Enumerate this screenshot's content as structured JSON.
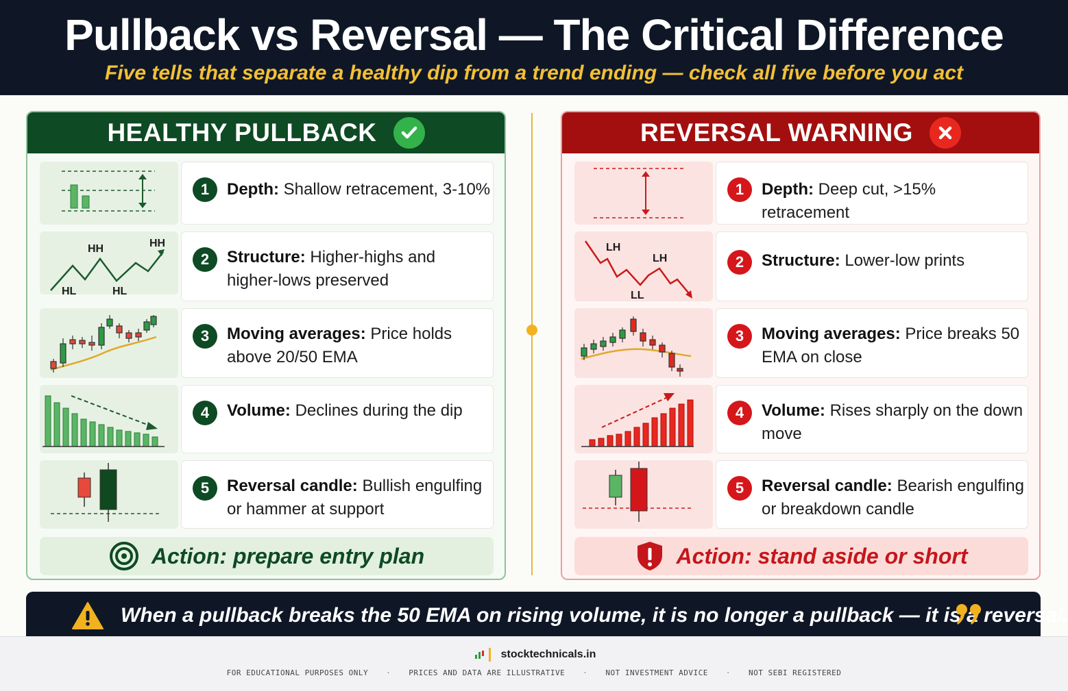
{
  "header": {
    "title": "Pullback vs Reversal — The Critical Difference",
    "subtitle": "Five tells that separate a healthy dip from a trend ending — check all five before you act"
  },
  "left_panel": {
    "title": "HEALTHY PULLBACK",
    "badge_icon": "check-icon",
    "accent": "#0e4a24",
    "rows": [
      {
        "num": "1",
        "label": "Depth:",
        "text": "Shallow retracement, 3-10%"
      },
      {
        "num": "2",
        "label": "Structure:",
        "text": "Higher-highs and higher-lows preserved",
        "chart_labels": [
          "HH",
          "HH",
          "HL",
          "HL"
        ]
      },
      {
        "num": "3",
        "label": "Moving averages:",
        "text": "Price holds above 20/50 EMA"
      },
      {
        "num": "4",
        "label": "Volume:",
        "text": "Declines during the dip"
      },
      {
        "num": "5",
        "label": "Reversal candle:",
        "text": "Bullish engulfing or hammer at support"
      }
    ],
    "action": "Action: prepare entry plan",
    "action_icon": "target-icon"
  },
  "right_panel": {
    "title": "REVERSAL WARNING",
    "badge_icon": "x-icon",
    "accent": "#a30f0f",
    "rows": [
      {
        "num": "1",
        "label": "Depth:",
        "text": "Deep cut, >15% retracement"
      },
      {
        "num": "2",
        "label": "Structure:",
        "text": "Lower-low prints",
        "chart_labels": [
          "LH",
          "LH",
          "LL"
        ]
      },
      {
        "num": "3",
        "label": "Moving averages:",
        "text": "Price breaks 50 EMA on close"
      },
      {
        "num": "4",
        "label": "Volume:",
        "text": "Rises sharply on the down move"
      },
      {
        "num": "5",
        "label": "Reversal candle:",
        "text": "Bearish engulfing or breakdown candle"
      }
    ],
    "action": "Action: stand aside or short",
    "action_icon": "shield-alert-icon"
  },
  "banner": {
    "text": "When a pullback breaks the 50 EMA on rising volume, it is no longer a pullback — it is a reversal.",
    "icon": "warning-icon",
    "quote_icon": "quote-icon"
  },
  "footer": {
    "brand": "stocktechnicals.in",
    "disclaimers": [
      "FOR EDUCATIONAL PURPOSES ONLY",
      "PRICES AND DATA ARE ILLUSTRATIVE",
      "NOT INVESTMENT ADVICE",
      "NOT SEBI REGISTERED"
    ]
  }
}
